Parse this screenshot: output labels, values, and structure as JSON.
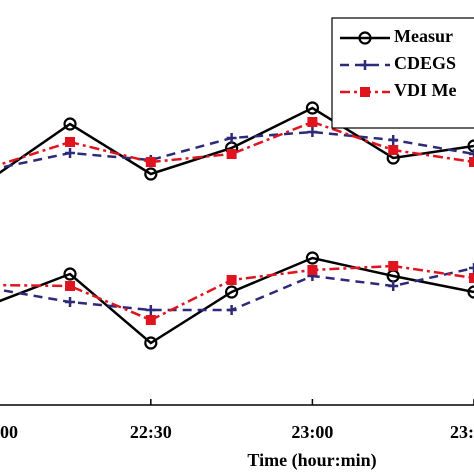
{
  "chart_data": {
    "type": "line",
    "x_label": "Time (hour:min)",
    "x": [
      1320,
      1335,
      1350,
      1365,
      1380,
      1395,
      1410
    ],
    "xlim": [
      1322,
      1410
    ],
    "xticks": [
      {
        "value": 1320,
        "label": "00"
      },
      {
        "value": 1350,
        "label": "22:30"
      },
      {
        "value": 1380,
        "label": "23:00"
      },
      {
        "value": 1410,
        "label": "23:"
      }
    ],
    "ylim": [
      0,
      400
    ],
    "series": [
      {
        "name": "Measur",
        "color": "#000000",
        "style": "solid",
        "marker": "circle",
        "values": [
          225,
          281,
          231,
          257,
          297,
          247,
          259
        ]
      },
      {
        "name": "CDEGS",
        "color": "#2e2a7a",
        "style": "dashed",
        "marker": "plus",
        "values": [
          235,
          252,
          245,
          267,
          273,
          265,
          251
        ]
      },
      {
        "name": "VDI Me",
        "color": "#e0141e",
        "style": "dashdot",
        "marker": "square",
        "values": [
          237,
          263,
          243,
          251,
          283,
          255,
          243
        ]
      },
      {
        "color": "#000000",
        "style": "solid",
        "marker": "circle",
        "values": [
          100,
          131,
          62,
          113,
          147,
          129,
          113
        ]
      },
      {
        "color": "#2e2a7a",
        "style": "dashed",
        "marker": "plus",
        "values": [
          117,
          103,
          95,
          95,
          129,
          119,
          137
        ]
      },
      {
        "color": "#e0141e",
        "style": "dashdot",
        "marker": "square",
        "values": [
          120,
          119,
          85,
          125,
          135,
          139,
          127
        ]
      }
    ],
    "legend": "upper right"
  }
}
